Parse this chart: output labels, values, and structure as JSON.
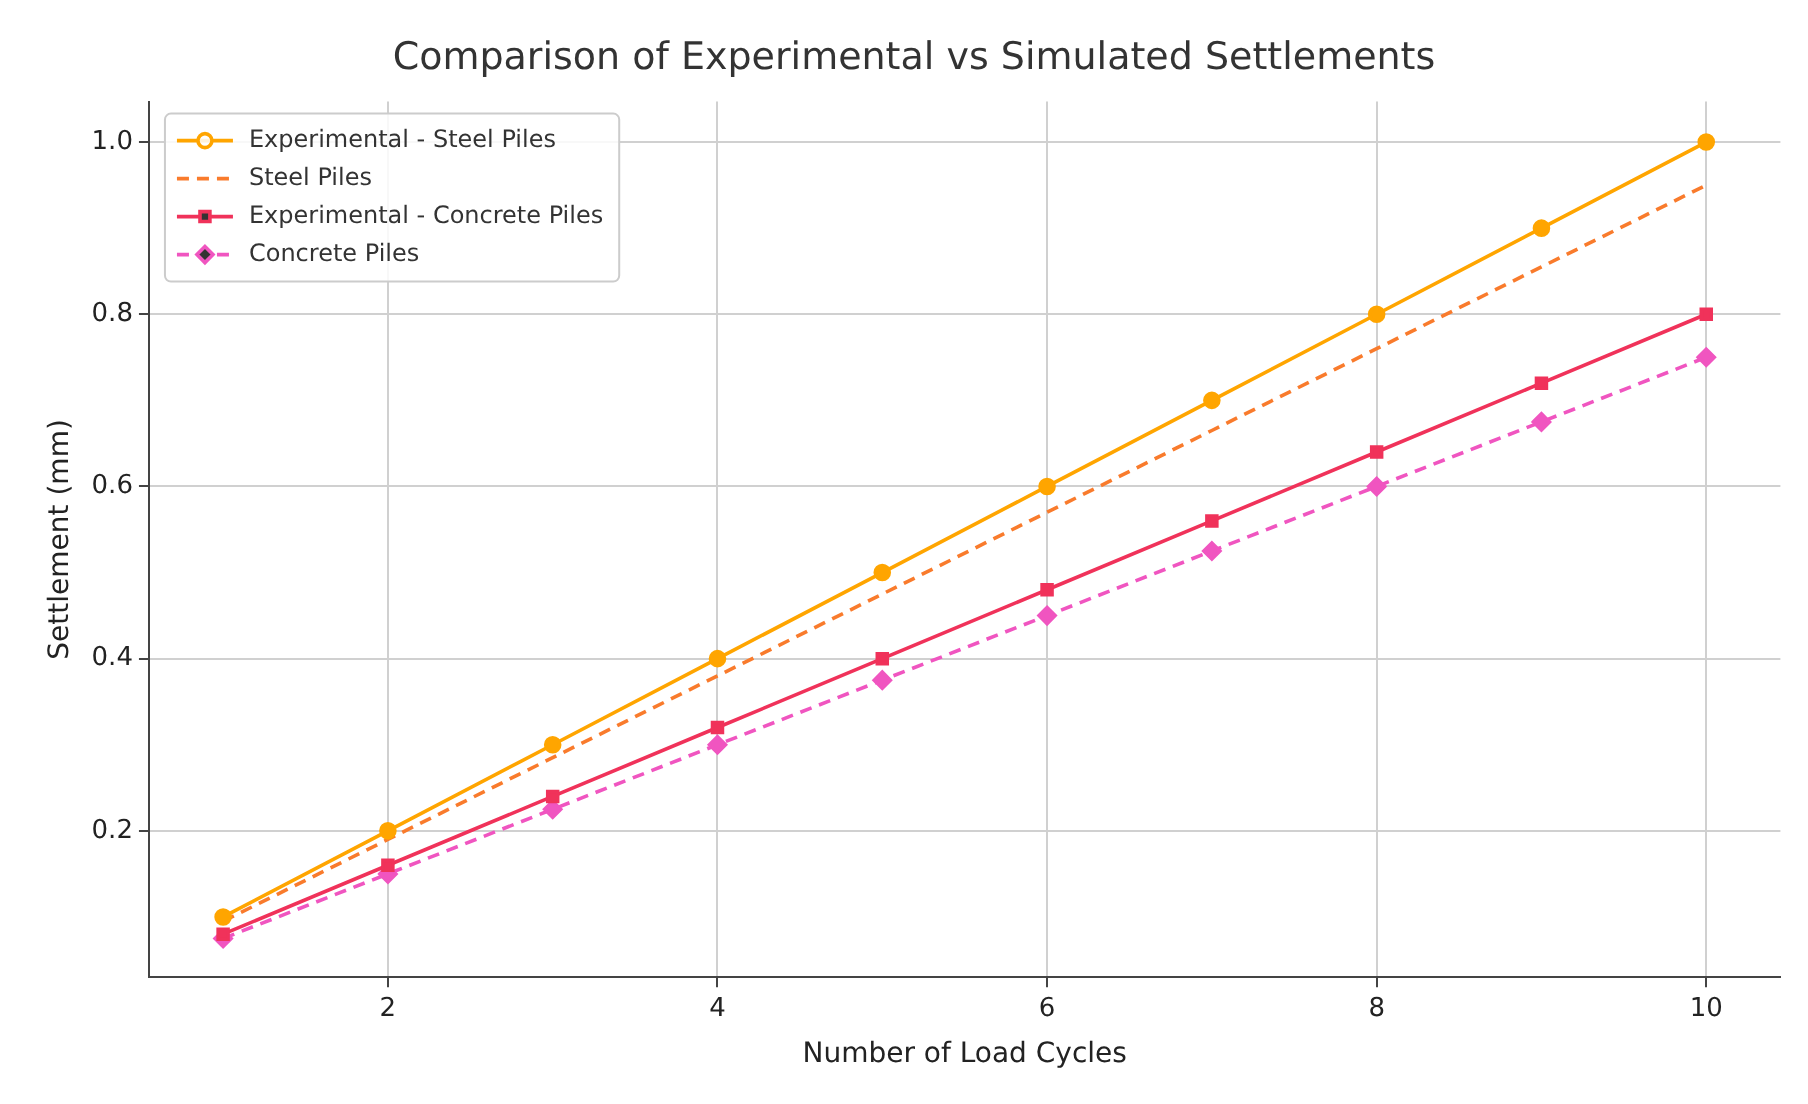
{
  "chart_data": {
    "type": "line",
    "title": "Comparison of Experimental vs Simulated Settlements",
    "xlabel": "Number of Load Cycles",
    "ylabel": "Settlement (mm)",
    "x": [
      1,
      2,
      3,
      4,
      5,
      6,
      7,
      8,
      9,
      10
    ],
    "series": [
      {
        "name": "Experimental - Steel Piles",
        "color": "#ffa500",
        "marker": "circle",
        "line_style": "solid",
        "values": [
          0.1,
          0.2,
          0.3,
          0.4,
          0.5,
          0.6,
          0.7,
          0.8,
          0.9,
          1.0
        ]
      },
      {
        "name": "Steel Piles",
        "color": "#f97b2c",
        "marker": "none",
        "line_style": "dashed",
        "values": [
          0.095,
          0.19,
          0.285,
          0.38,
          0.475,
          0.57,
          0.665,
          0.76,
          0.855,
          0.95
        ]
      },
      {
        "name": "Experimental - Concrete Piles",
        "color": "#f0325a",
        "marker": "square",
        "line_style": "solid",
        "values": [
          0.08,
          0.16,
          0.24,
          0.32,
          0.4,
          0.48,
          0.56,
          0.64,
          0.72,
          0.8
        ]
      },
      {
        "name": "Concrete Piles",
        "color": "#f055c0",
        "marker": "diamond",
        "line_style": "dashed",
        "values": [
          0.075,
          0.15,
          0.225,
          0.3,
          0.375,
          0.45,
          0.525,
          0.6,
          0.675,
          0.75
        ]
      }
    ],
    "xlim": [
      0.55,
      10.45
    ],
    "xticks": [
      2,
      4,
      6,
      8,
      10
    ],
    "ylim": [
      0.03,
      1.047
    ],
    "yticks": [
      0.2,
      0.4,
      0.6,
      0.8,
      {
        "value": 1,
        "label": "1.0"
      }
    ],
    "grid": true,
    "legend": "top left"
  }
}
